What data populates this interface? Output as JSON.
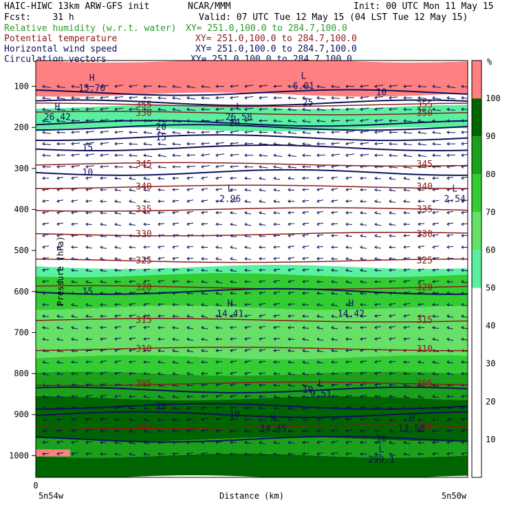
{
  "header": {
    "title_left": "HAIC-HIWC 13km ARW-GFS init",
    "org": "NCAR/MMM",
    "init": "Init: 00 UTC Mon 11 May 15",
    "fcst": "Fcst:    31 h",
    "valid": "Valid: 07 UTC Tue 12 May 15 (04 LST Tue 12 May 15)"
  },
  "fields": [
    {
      "name": "Relative humidity (w.r.t. water)",
      "xy": "XY= 251.0,100.0 to 284.7,100.0",
      "color": "#2a9a2a"
    },
    {
      "name": "Potential temperature",
      "xy": "XY= 251.0,100.0 to 284.7,100.0",
      "color": "#8b1a1a"
    },
    {
      "name": "Horizontal wind speed",
      "xy": "XY= 251.0,100.0 to 284.7,100.0",
      "color": "#10105a"
    },
    {
      "name": "Circulation vectors",
      "xy": "XY= 251.0,100.0 to 284.7,100.0",
      "color": "#10105a"
    }
  ],
  "chart_data": {
    "type": "heatmap",
    "ylabel": "Pressure (hPa)",
    "xlabel": "Distance (km)",
    "x_tick_left": "5n54w",
    "x_tick_right": "5n50w",
    "x_origin": "0",
    "y_ticks": [
      100,
      200,
      300,
      400,
      500,
      600,
      700,
      800,
      900,
      1000
    ],
    "colorbar": {
      "unit": "%",
      "ticks": [
        10,
        20,
        30,
        40,
        50,
        60,
        70,
        80,
        90,
        100
      ],
      "bins": [
        {
          "from": 0,
          "to": 50,
          "color": "#ffffff"
        },
        {
          "from": 50,
          "to": 60,
          "color": "#5af0a0"
        },
        {
          "from": 60,
          "to": 70,
          "color": "#66e066"
        },
        {
          "from": 70,
          "to": 80,
          "color": "#33cc33"
        },
        {
          "from": 80,
          "to": 90,
          "color": "#1aa01a"
        },
        {
          "from": 90,
          "to": 100,
          "color": "#006400"
        },
        {
          "from": 100,
          "to": 110,
          "color": "#ff8080"
        }
      ]
    },
    "theta_contours": [
      {
        "label": "300",
        "p": 930
      },
      {
        "label": "305",
        "p": 825
      },
      {
        "label": "310",
        "p": 740
      },
      {
        "label": "315",
        "p": 670
      },
      {
        "label": "320",
        "p": 590
      },
      {
        "label": "325",
        "p": 525
      },
      {
        "label": "330",
        "p": 460
      },
      {
        "label": "335",
        "p": 400
      },
      {
        "label": "340",
        "p": 345
      },
      {
        "label": "345",
        "p": 290
      },
      {
        "label": "350",
        "p": 165
      },
      {
        "label": "355",
        "p": 145
      }
    ],
    "wind_labels": [
      "10",
      "15",
      "20",
      "25",
      "10",
      "15",
      "20",
      "10",
      "10",
      "10",
      "15",
      "20"
    ],
    "extrema": [
      {
        "type": "L",
        "value": "2.96",
        "x": 0.45,
        "p": 370
      },
      {
        "type": "L",
        "value": "2.54",
        "x": 0.97,
        "p": 370
      },
      {
        "type": "H",
        "value": "14.41",
        "x": 0.45,
        "p": 650
      },
      {
        "type": "H",
        "value": "14.42",
        "x": 0.73,
        "p": 650
      },
      {
        "type": "L",
        "value": "9.51",
        "x": 0.66,
        "p": 845
      },
      {
        "type": "H",
        "value": "14.45",
        "x": 0.55,
        "p": 930
      },
      {
        "type": "H",
        "value": "13.58",
        "x": 0.87,
        "p": 930
      },
      {
        "type": "L",
        "value": "299.1",
        "x": 0.8,
        "p": 1005
      },
      {
        "type": "H",
        "value": "26.42",
        "x": 0.05,
        "p": 170
      },
      {
        "type": "L",
        "value": "26.58",
        "x": 0.47,
        "p": 170
      },
      {
        "type": "H",
        "value": "15.70",
        "x": 0.13,
        "p": 100
      },
      {
        "type": "L",
        "value": "6.01",
        "x": 0.62,
        "p": 95
      }
    ]
  }
}
